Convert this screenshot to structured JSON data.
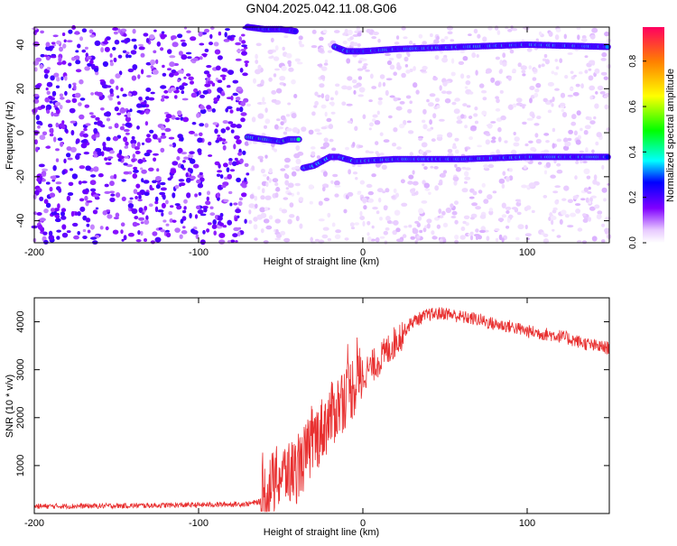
{
  "page": {
    "title": "GN04.2025.042.11.08.G06"
  },
  "colors": {
    "snr_line": "#e83030",
    "axis": "#000000",
    "background": "#ffffff"
  },
  "chart_data": [
    {
      "type": "heatmap",
      "title": "GN04.2025.042.11.08.G06",
      "xlabel": "Height of straight line (km)",
      "ylabel": "Frequency (Hz)",
      "xlim": [
        -200,
        150
      ],
      "ylim": [
        -50,
        48
      ],
      "x_ticks": [
        -200,
        -100,
        0,
        100
      ],
      "y_ticks": [
        -40,
        -20,
        0,
        20,
        40
      ],
      "colorbar": {
        "label": "Normalized spectral amplitude",
        "range": [
          0,
          0.95
        ],
        "ticks": [
          0.0,
          0.2,
          0.4,
          0.6,
          0.8
        ],
        "tick_labels": [
          "0.0",
          "0.2",
          "0.4",
          "0.6",
          "0.8"
        ]
      },
      "tracks": [
        {
          "x": [
            -70,
            -60,
            -50,
            -45,
            -38
          ],
          "y": [
            -2,
            -3,
            -4,
            -3,
            -3
          ],
          "amplitude": 0.35
        },
        {
          "x": [
            -36,
            -30,
            -25,
            -20,
            -15,
            -5,
            20,
            60,
            100,
            150
          ],
          "y": [
            -16,
            -15,
            -13,
            -11,
            -11,
            -13,
            -12,
            -12,
            -11,
            -11
          ],
          "amplitude": 0.3
        },
        {
          "x": [
            -70,
            -60,
            -50,
            -40
          ],
          "y": [
            48,
            47,
            47,
            46
          ],
          "amplitude": 0.25
        },
        {
          "x": [
            -17,
            -10,
            0,
            20,
            60,
            100,
            150
          ],
          "y": [
            39,
            37,
            37,
            38,
            39,
            40,
            39
          ],
          "amplitude": 0.3
        }
      ],
      "background_noise": {
        "x_range": [
          -200,
          -70
        ],
        "dense_amplitude": 0.2
      }
    },
    {
      "type": "line",
      "xlabel": "Height of straight line (km)",
      "ylabel": "SNR (10 * v/v)",
      "xlim": [
        -200,
        150
      ],
      "ylim": [
        0,
        4500
      ],
      "x_ticks": [
        -200,
        -100,
        0,
        100
      ],
      "y_ticks": [
        1000,
        2000,
        3000,
        4000
      ],
      "x": [
        -200,
        -150,
        -100,
        -70,
        -62,
        -58,
        -50,
        -40,
        -30,
        -20,
        -10,
        0,
        10,
        20,
        30,
        40,
        50,
        60,
        70,
        80,
        90,
        100,
        110,
        120,
        130,
        140,
        150
      ],
      "y": [
        150,
        160,
        180,
        200,
        250,
        500,
        800,
        900,
        1500,
        2000,
        2500,
        2900,
        3200,
        3600,
        4000,
        4150,
        4180,
        4100,
        4050,
        3950,
        3900,
        3800,
        3750,
        3700,
        3600,
        3500,
        3450
      ]
    }
  ]
}
